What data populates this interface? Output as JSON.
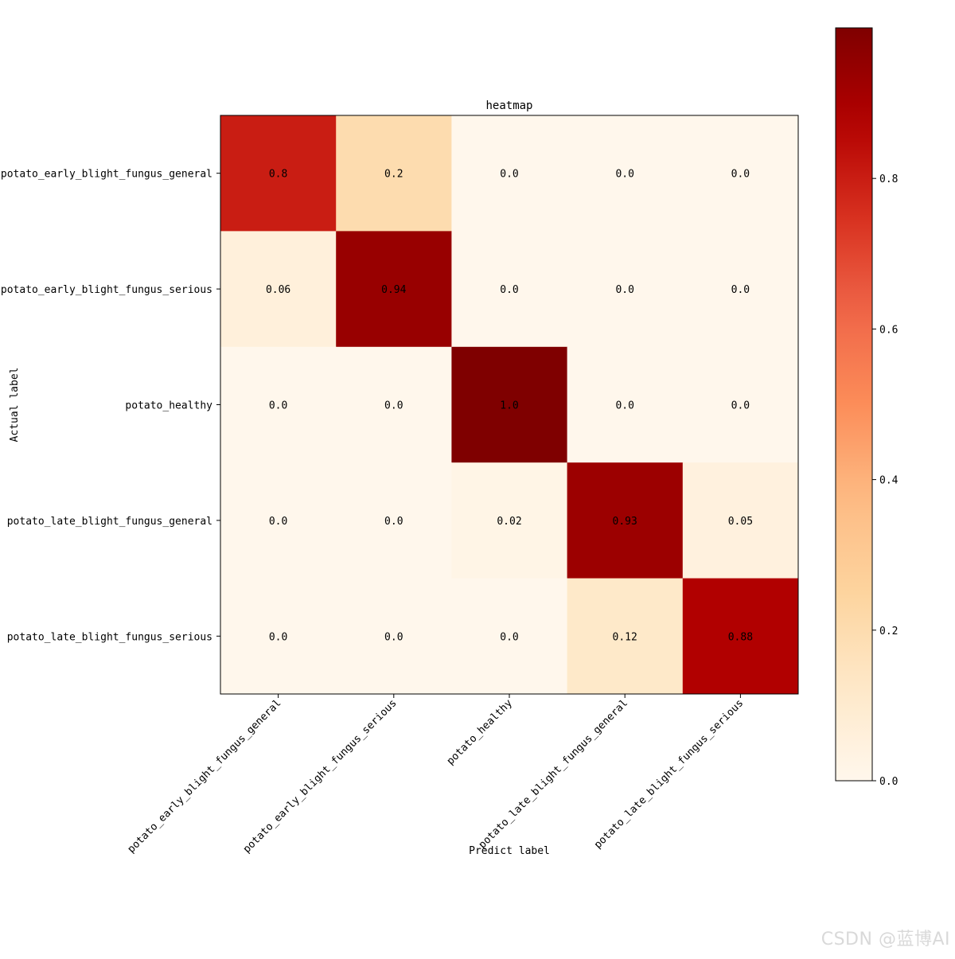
{
  "chart_data": {
    "type": "heatmap",
    "title": "heatmap",
    "xlabel": "Predict label",
    "ylabel": "Actual label",
    "x_categories": [
      "potato_early_blight_fungus_general",
      "potato_early_blight_fungus_serious",
      "potato_healthy",
      "potato_late_blight_fungus_general",
      "potato_late_blight_fungus_serious"
    ],
    "y_categories": [
      "potato_early_blight_fungus_general",
      "potato_early_blight_fungus_serious",
      "potato_healthy",
      "potato_late_blight_fungus_general",
      "potato_late_blight_fungus_serious"
    ],
    "values": [
      [
        0.8,
        0.2,
        0.0,
        0.0,
        0.0
      ],
      [
        0.06,
        0.94,
        0.0,
        0.0,
        0.0
      ],
      [
        0.0,
        0.0,
        1.0,
        0.0,
        0.0
      ],
      [
        0.0,
        0.0,
        0.02,
        0.93,
        0.05
      ],
      [
        0.0,
        0.0,
        0.0,
        0.12,
        0.88
      ]
    ],
    "cell_labels": [
      [
        "0.8",
        "0.2",
        "0.0",
        "0.0",
        "0.0"
      ],
      [
        "0.06",
        "0.94",
        "0.0",
        "0.0",
        "0.0"
      ],
      [
        "0.0",
        "0.0",
        "1.0",
        "0.0",
        "0.0"
      ],
      [
        "0.0",
        "0.0",
        "0.02",
        "0.93",
        "0.05"
      ],
      [
        "0.0",
        "0.0",
        "0.0",
        "0.12",
        "0.88"
      ]
    ],
    "colormap": "OrRd",
    "colorbar": {
      "range": [
        0.0,
        1.0
      ],
      "ticks": [
        0.0,
        0.2,
        0.4,
        0.6,
        0.8
      ],
      "tick_labels": [
        "0.0",
        "0.2",
        "0.4",
        "0.6",
        "0.8"
      ]
    },
    "grid": false
  },
  "watermark": "CSDN @蓝博AI"
}
